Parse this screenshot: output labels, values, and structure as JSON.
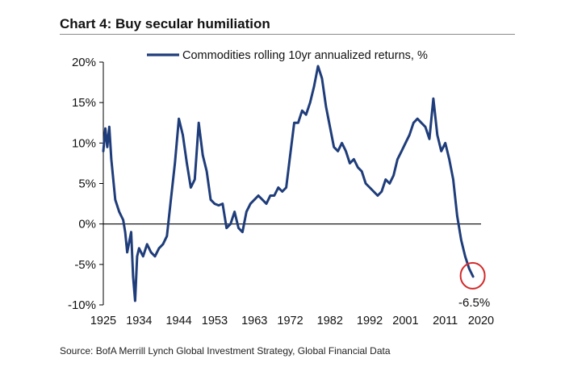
{
  "title": "Chart 4: Buy secular humiliation",
  "source": "Source: BofA Merrill Lynch Global Investment Strategy, Global Financial Data",
  "chart_data": {
    "type": "line",
    "title": "Chart 4: Buy secular humiliation",
    "xlabel": "",
    "ylabel": "",
    "xlim": [
      1925,
      2020
    ],
    "ylim": [
      -10,
      20
    ],
    "x_ticks": [
      1925,
      1934,
      1944,
      1953,
      1963,
      1972,
      1982,
      1992,
      2001,
      2011,
      2020
    ],
    "y_ticks": [
      -10,
      -5,
      0,
      5,
      10,
      15,
      20
    ],
    "y_tick_labels": [
      "-10%",
      "-5%",
      "0%",
      "5%",
      "10%",
      "15%",
      "20%"
    ],
    "legend_position": "top-center",
    "grid": false,
    "annotation": {
      "label": "-6.5%",
      "x": 2018.5,
      "y": -6.5,
      "marker": "red-circle"
    },
    "series": [
      {
        "name": "Commodities rolling 10yr annualized returns, %",
        "color": "#1f3d7a",
        "x": [
          1925,
          1925.5,
          1926,
          1926.5,
          1927,
          1928,
          1929,
          1930,
          1930.5,
          1931,
          1932,
          1932.5,
          1933,
          1933.5,
          1934,
          1935,
          1936,
          1937,
          1938,
          1939,
          1940,
          1941,
          1942,
          1943,
          1944,
          1945,
          1946,
          1947,
          1948,
          1949,
          1950,
          1951,
          1952,
          1953,
          1954,
          1955,
          1956,
          1957,
          1958,
          1959,
          1960,
          1961,
          1962,
          1963,
          1964,
          1965,
          1966,
          1967,
          1968,
          1969,
          1970,
          1971,
          1972,
          1973,
          1974,
          1975,
          1976,
          1977,
          1978,
          1979,
          1980,
          1981,
          1982,
          1983,
          1984,
          1985,
          1986,
          1987,
          1988,
          1989,
          1990,
          1991,
          1992,
          1993,
          1994,
          1995,
          1996,
          1997,
          1998,
          1999,
          2000,
          2001,
          2002,
          2003,
          2004,
          2005,
          2006,
          2007,
          2008,
          2009,
          2010,
          2011,
          2012,
          2013,
          2014,
          2015,
          2016,
          2017,
          2018
        ],
        "values": [
          9,
          11.8,
          9.5,
          12,
          8,
          3,
          1.5,
          0.5,
          -1,
          -3.5,
          -1,
          -6.5,
          -9.5,
          -4,
          -3,
          -4,
          -2.5,
          -3.5,
          -4,
          -3,
          -2.5,
          -1.5,
          3,
          7.5,
          13,
          11,
          7.5,
          4.5,
          5.5,
          12.5,
          8.5,
          6.5,
          3,
          2.5,
          2.3,
          2.5,
          -0.5,
          0,
          1.5,
          -0.5,
          -1,
          1.5,
          2.5,
          3,
          3.5,
          3,
          2.5,
          3.5,
          3.5,
          4.5,
          4,
          4.5,
          8.5,
          12.5,
          12.5,
          14,
          13.5,
          15,
          17,
          19.5,
          18,
          14.5,
          12,
          9.5,
          9,
          10,
          9,
          7.5,
          8,
          7,
          6.5,
          5,
          4.5,
          4,
          3.5,
          4,
          5.5,
          5,
          6,
          8,
          9,
          10,
          11,
          12.5,
          13,
          12.5,
          12,
          10.5,
          15.5,
          11,
          9,
          10,
          8,
          5.5,
          1,
          -2,
          -4,
          -5.5,
          -6.5
        ]
      }
    ]
  }
}
